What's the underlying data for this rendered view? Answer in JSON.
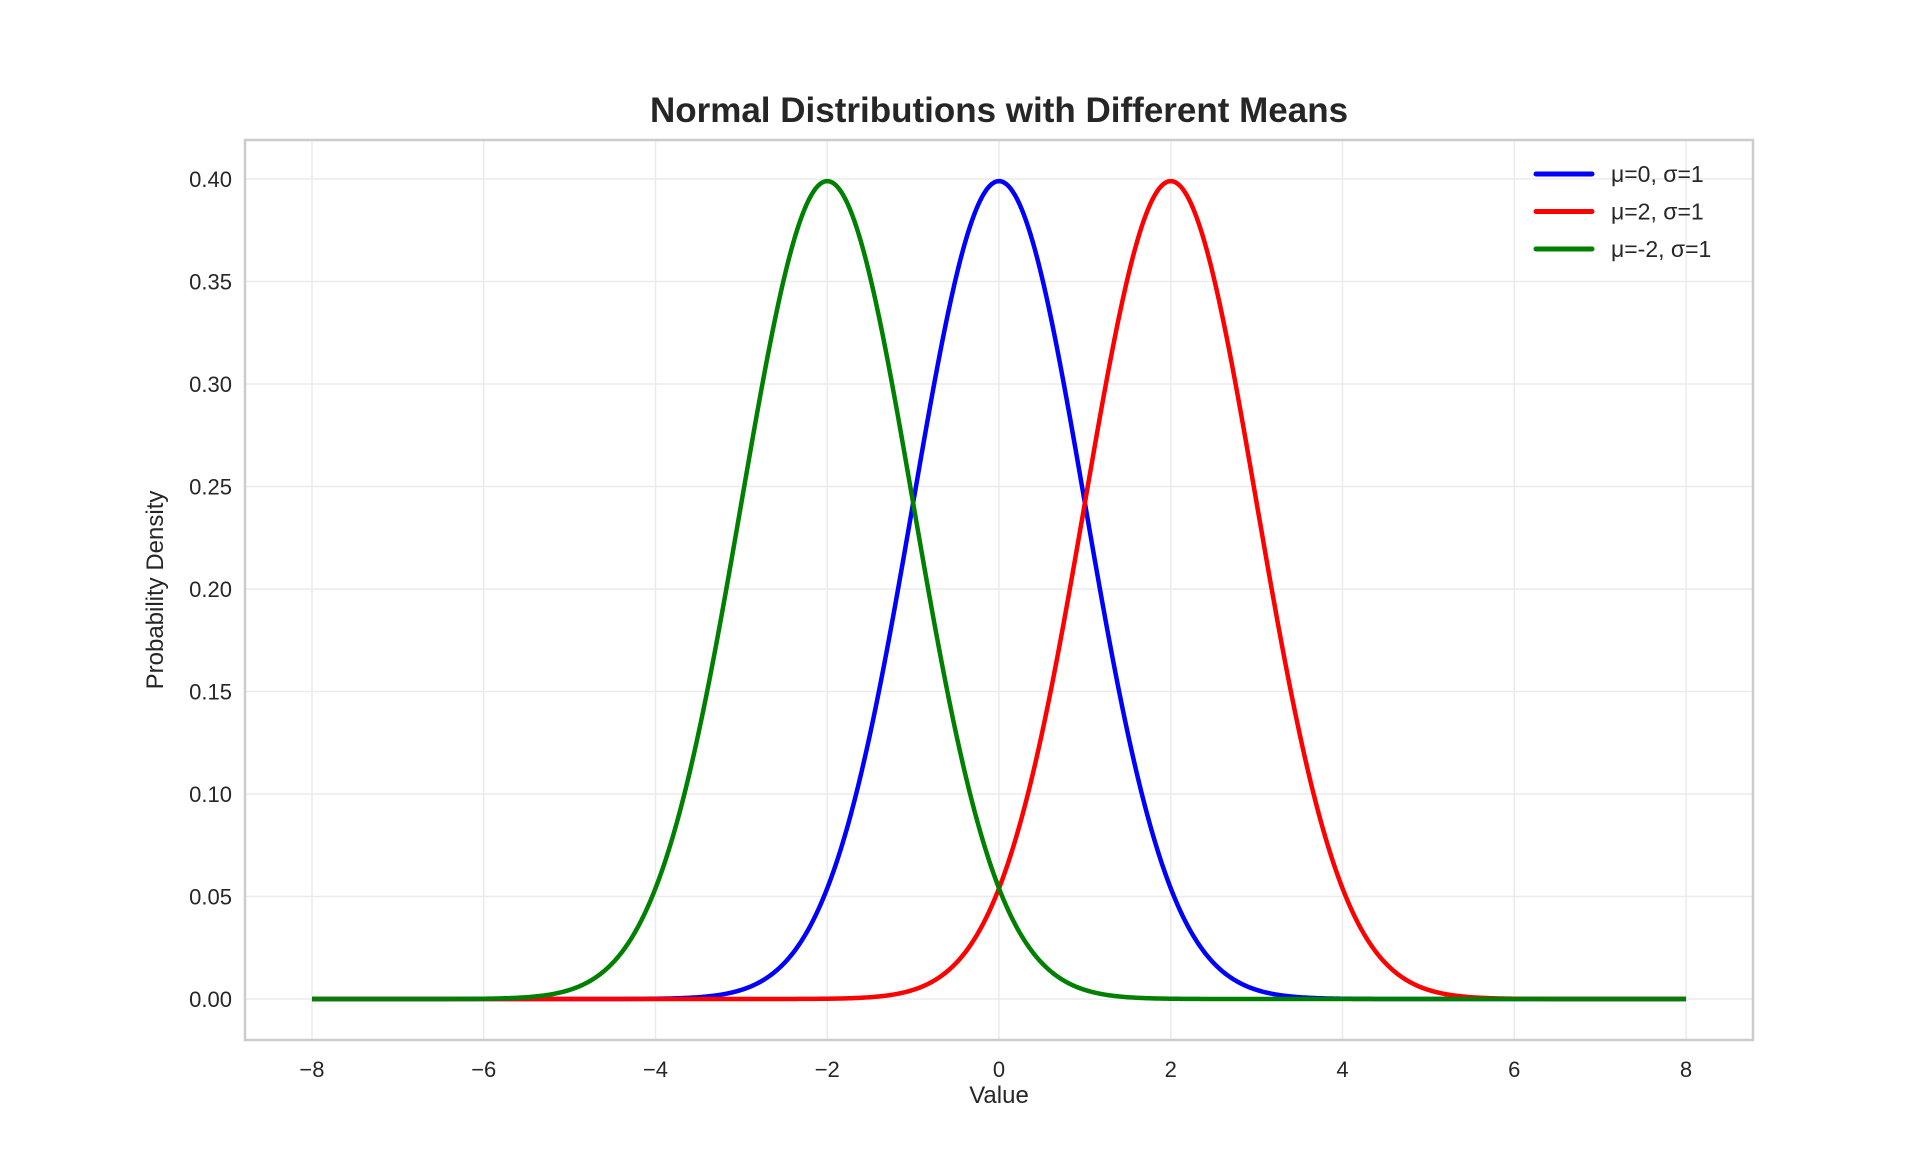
{
  "chart_data": {
    "type": "line",
    "title": "Normal Distributions with Different Means",
    "xlabel": "Value",
    "ylabel": "Probability Density",
    "xlim": [
      -8.78,
      8.78
    ],
    "ylim": [
      -0.02,
      0.419
    ],
    "x_range": [
      -8,
      8
    ],
    "xticks": [
      -8,
      -6,
      -4,
      -2,
      0,
      2,
      4,
      6,
      8
    ],
    "xtick_labels": [
      "−8",
      "−6",
      "−4",
      "−2",
      "0",
      "2",
      "4",
      "6",
      "8"
    ],
    "yticks": [
      0,
      0.05,
      0.1,
      0.15,
      0.2,
      0.25,
      0.3,
      0.35,
      0.4
    ],
    "ytick_labels": [
      "0.00",
      "0.05",
      "0.10",
      "0.15",
      "0.20",
      "0.25",
      "0.30",
      "0.35",
      "0.40"
    ],
    "grid": true,
    "legend_position": "top-right",
    "series": [
      {
        "name": "μ=0, σ=1",
        "mu": 0,
        "sigma": 1,
        "color": "#0000ff"
      },
      {
        "name": "μ=2, σ=1",
        "mu": 2,
        "sigma": 1,
        "color": "#ff0000"
      },
      {
        "name": "μ=-2, σ=1",
        "mu": -2,
        "sigma": 1,
        "color": "#008000"
      }
    ]
  }
}
